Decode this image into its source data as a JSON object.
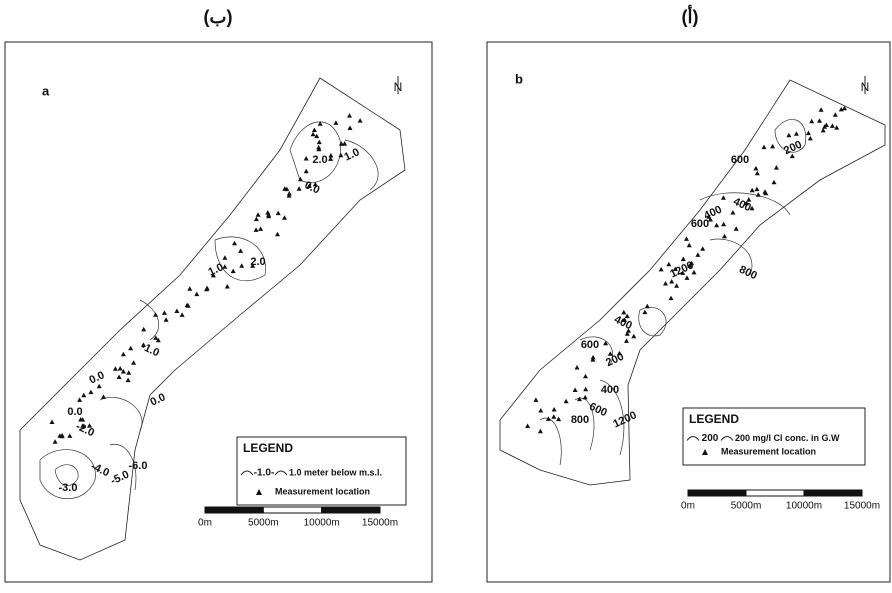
{
  "panels": [
    {
      "caption": "(ب)",
      "letter": "a",
      "north": "N",
      "legend": {
        "title": "LEGEND",
        "line_label": "-1.0-",
        "line_text": "1.0 meter below m.s.l.",
        "point_text": "Measurement location"
      },
      "scale": [
        "0m",
        "5000m",
        "10000m",
        "15000m"
      ],
      "contour_labels": [
        "1.0",
        "2.0",
        "0.0",
        "1.0",
        "2.0",
        "-1.0",
        "0.0",
        "0.0",
        "-2.0",
        "0.0",
        "-3.0",
        "-4.0",
        "-5.0",
        "-6.0"
      ]
    },
    {
      "caption": "(أ)",
      "letter": "b",
      "north": "N",
      "legend": {
        "title": "LEGEND",
        "line_label": "200",
        "line_text": "200 mg/l Cl conc. in G.W",
        "point_text": "Measurement location"
      },
      "scale": [
        "0m",
        "5000m",
        "10000m",
        "15000m"
      ],
      "contour_labels": [
        "200",
        "600",
        "400",
        "400",
        "600",
        "800",
        "1200",
        "600",
        "400",
        "200",
        "400",
        "600",
        "1200",
        "800"
      ]
    }
  ]
}
